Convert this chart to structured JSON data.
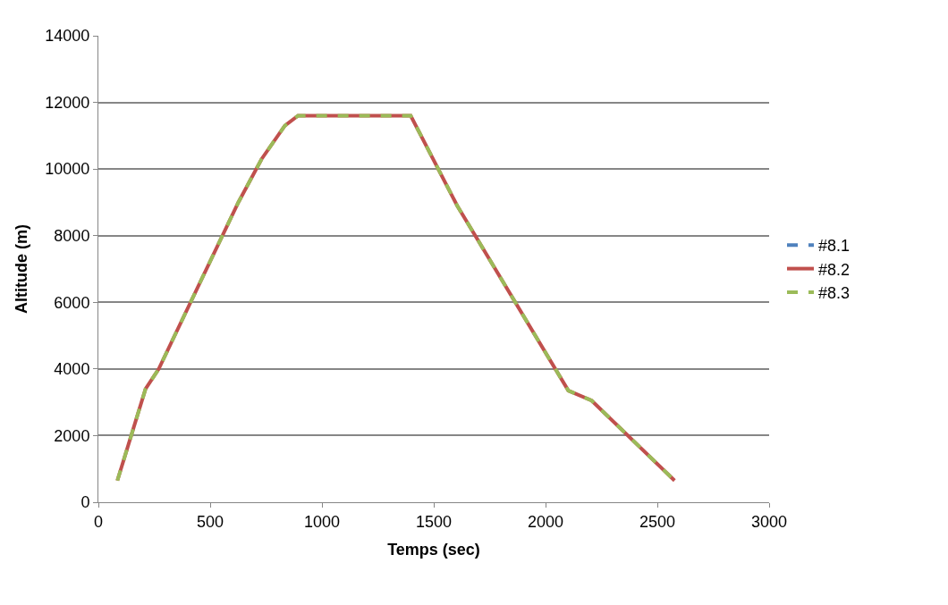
{
  "chart_data": {
    "type": "line",
    "xlabel": "Temps (sec)",
    "ylabel": "Altitude (m)",
    "x": [
      85,
      211,
      270,
      626,
      730,
      834,
      893,
      1390,
      1397,
      1605,
      2102,
      2206,
      2577
    ],
    "series": [
      {
        "name": "#8.1",
        "color": "#4f81bd",
        "line_style": "dashed",
        "values": [
          null,
          null,
          null,
          null,
          null,
          null,
          null,
          null,
          null,
          null,
          null,
          null,
          null
        ]
      },
      {
        "name": "#8.2",
        "color": "#c0504d",
        "line_style": "solid",
        "values": [
          650,
          3400,
          4000,
          9000,
          10300,
          11300,
          11600,
          11600,
          11600,
          8900,
          3350,
          3050,
          650
        ]
      },
      {
        "name": "#8.3",
        "color": "#9bbb59",
        "line_style": "dashed",
        "values": [
          650,
          3400,
          4000,
          9000,
          10300,
          11300,
          11600,
          11600,
          11600,
          8900,
          3350,
          3050,
          650
        ]
      }
    ],
    "xlim": [
      0,
      3000
    ],
    "xticks": [
      0,
      500,
      1000,
      1500,
      2000,
      2500,
      3000
    ],
    "ylim": [
      0,
      14000
    ],
    "yticks": [
      0,
      2000,
      4000,
      6000,
      8000,
      10000,
      12000,
      14000
    ],
    "grid": "y",
    "legend": "right",
    "marker": "none"
  }
}
